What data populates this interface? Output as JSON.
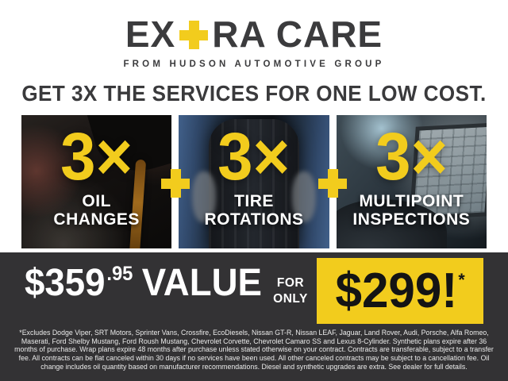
{
  "brand": {
    "name_left": "EX",
    "name_right": "RA CARE",
    "tagline": "FROM HUDSON AUTOMOTIVE GROUP"
  },
  "headline": "GET 3X THE SERVICES FOR ONE LOW COST.",
  "panels": [
    {
      "multiplier": "3×",
      "label_line1": "OIL",
      "label_line2": "CHANGES",
      "photo": "oil-pouring-photo"
    },
    {
      "multiplier": "3×",
      "label_line1": "TIRE",
      "label_line2": "ROTATIONS",
      "photo": "mechanic-holding-tire-photo"
    },
    {
      "multiplier": "3×",
      "label_line1": "MULTIPOINT",
      "label_line2": "INSPECTIONS",
      "photo": "technician-diagnostics-laptop-photo"
    }
  ],
  "offer": {
    "value_dollars": "$359",
    "value_cents": ".95",
    "value_word": "VALUE",
    "for_line1": "FOR",
    "for_line2": "ONLY",
    "sale_price": "$299!",
    "sale_asterisk": "*"
  },
  "fine_print": {
    "text": "*Excludes Dodge Viper, SRT Motors, Sprinter Vans, Crossfire, EcoDiesels, Nissan GT-R, Nissan LEAF, Jaguar, Land Rover, Audi, Porsche, Alfa Romeo, Maserati, Ford Shelby Mustang, Ford Roush Mustang, Chevrolet Corvette, Chevrolet Camaro SS and Lexus 8-Cylinder. Synthetic plans expire after 36 months of purchase. Wrap plans expire 48 months after purchase unless stated otherwise on your contract. Contracts are transferable, subject to a transfer fee. All contracts can be flat canceled within 30 days if no services have been used. All other canceled contracts may be subject to a cancellation fee. Oil change includes oil quantity based on manufacturer recommendations. Diesel and synthetic upgrades are extra. See dealer for full details."
  },
  "colors": {
    "accent_yellow": "#F2CC1D",
    "band_dark": "#333234",
    "text_dark": "#3B3B3D"
  }
}
